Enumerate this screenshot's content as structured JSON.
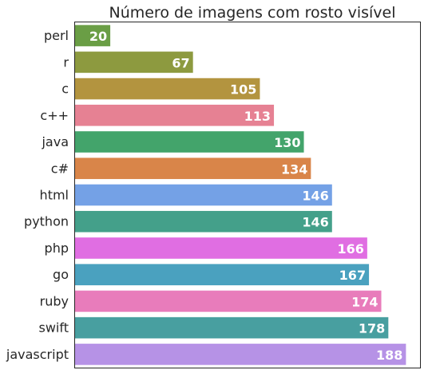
{
  "chart_data": {
    "type": "bar",
    "orientation": "horizontal",
    "title": "Número de imagens com rosto visível",
    "xlabel": "",
    "ylabel": "",
    "categories": [
      "perl",
      "r",
      "c",
      "c++",
      "java",
      "c#",
      "html",
      "python",
      "php",
      "go",
      "ruby",
      "swift",
      "javascript"
    ],
    "values": [
      20,
      67,
      105,
      113,
      130,
      134,
      146,
      146,
      166,
      167,
      174,
      178,
      188
    ],
    "colors": [
      "#6a9e45",
      "#8d9a3f",
      "#b3943f",
      "#e68193",
      "#43a46b",
      "#d98549",
      "#74a1e6",
      "#44a08a",
      "#e06ee2",
      "#4aa1bf",
      "#e87cbb",
      "#489fa0",
      "#b692e6"
    ],
    "xlim": [
      0,
      196
    ],
    "grid": false,
    "legend": "none",
    "data_labels": true,
    "x_ticks_visible": false
  }
}
